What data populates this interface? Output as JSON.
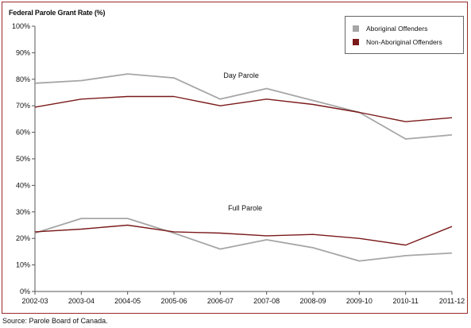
{
  "title": "Federal Parole Grant Rate (%)",
  "source": "Source:  Parole Board of Canada.",
  "colors": {
    "aboriginal": "#a6a6a6",
    "non_aboriginal": "#7b1a1a",
    "frame": "#9b2a2a"
  },
  "chart_data": {
    "type": "line",
    "categories": [
      "2002-03",
      "2003-04",
      "2004-05",
      "2005-06",
      "2006-07",
      "2007-08",
      "2008-09",
      "2009-10",
      "2010-11",
      "2011-12"
    ],
    "ylim": [
      0,
      100
    ],
    "yticks": [
      "0%",
      "10%",
      "20%",
      "30%",
      "40%",
      "50%",
      "60%",
      "70%",
      "80%",
      "90%",
      "100%"
    ],
    "grid": false,
    "legend_position": "top-right",
    "legend": [
      "Aboriginal Offenders",
      "Non-Aboriginal Offenders"
    ],
    "annotations": [
      "Day Parole",
      "Full Parole"
    ],
    "series": [
      {
        "name": "Aboriginal Offenders",
        "group": "Day Parole",
        "values": [
          78.5,
          79.5,
          82,
          80.5,
          72.5,
          76.5,
          72,
          67.5,
          57.5,
          59
        ]
      },
      {
        "name": "Non-Aboriginal Offenders",
        "group": "Day Parole",
        "values": [
          69.5,
          72.5,
          73.5,
          73.5,
          70,
          72.5,
          70.5,
          67.5,
          64,
          65.5
        ]
      },
      {
        "name": "Aboriginal Offenders",
        "group": "Full Parole",
        "values": [
          22,
          27.5,
          27.5,
          22,
          16,
          19.5,
          16.5,
          11.5,
          13.5,
          14.5
        ]
      },
      {
        "name": "Non-Aboriginal Offenders",
        "group": "Full Parole",
        "values": [
          22.5,
          23.5,
          25,
          22.5,
          22,
          21,
          21.5,
          20,
          17.5,
          24.5
        ]
      }
    ]
  }
}
